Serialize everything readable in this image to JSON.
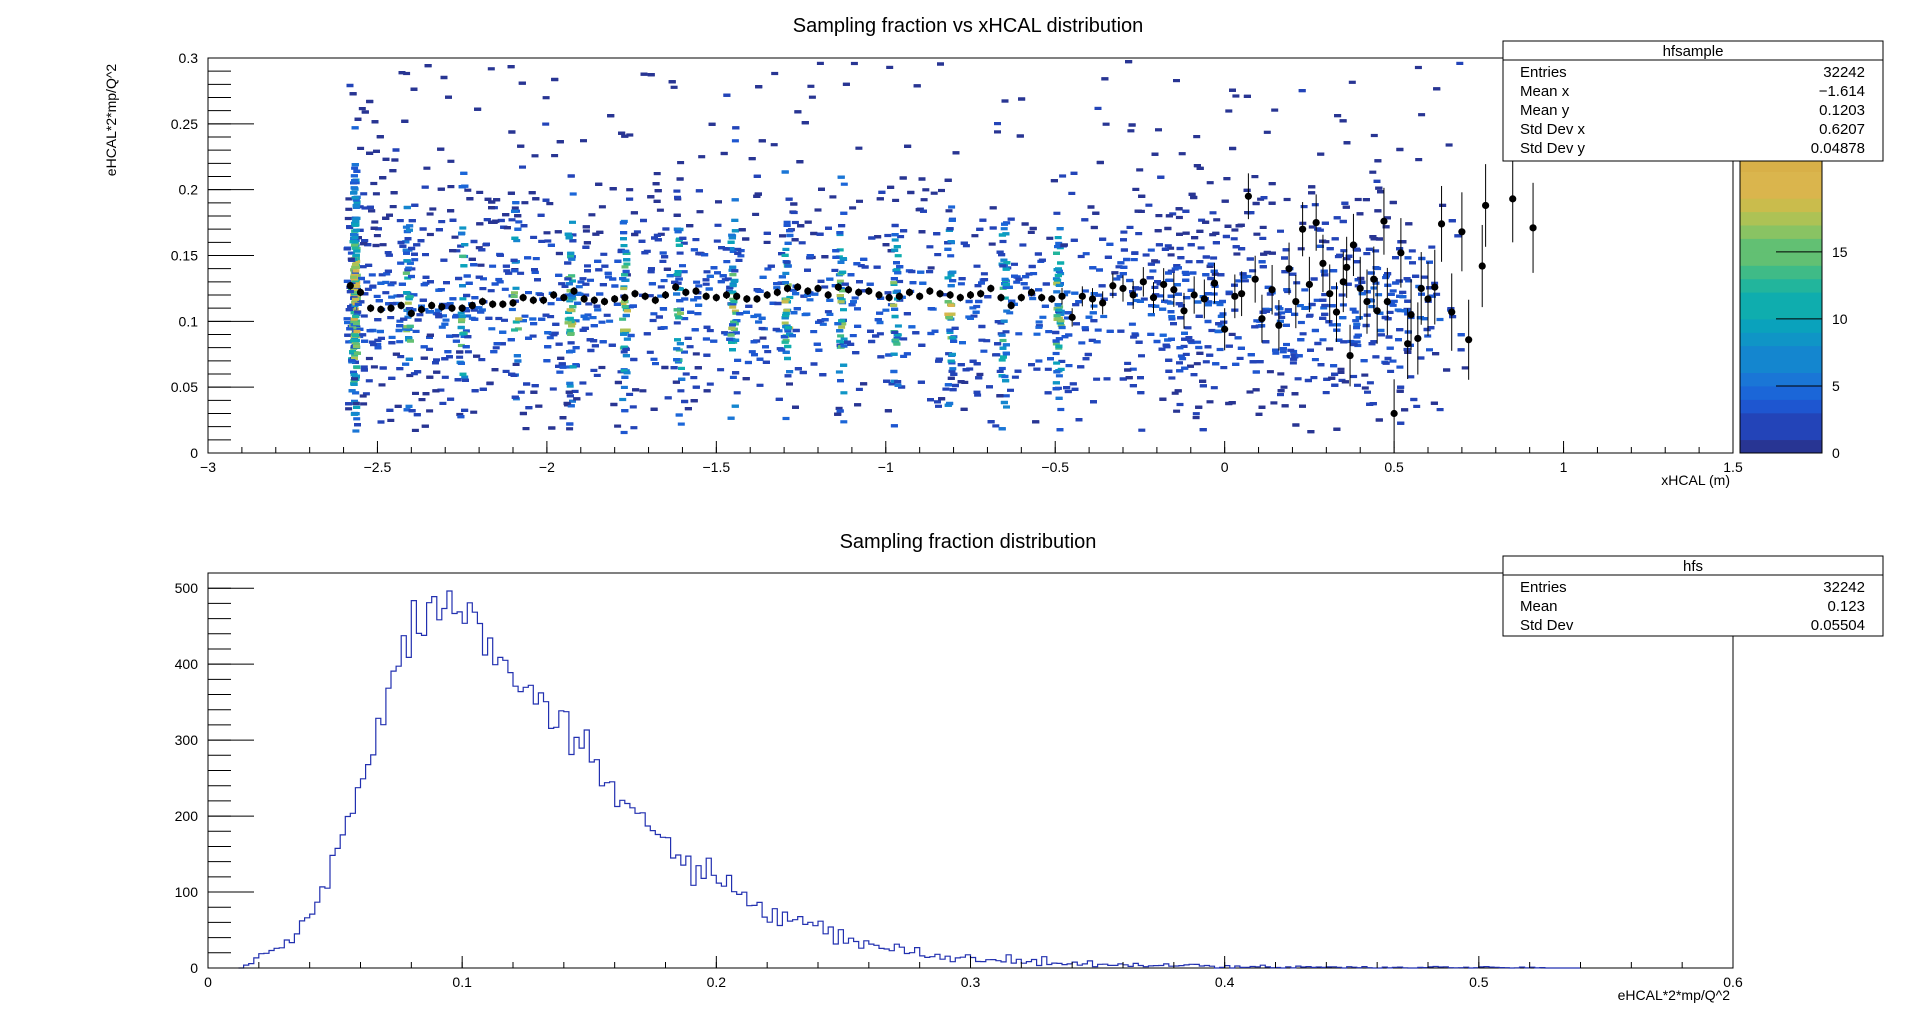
{
  "chart_data": [
    {
      "type": "heatmap",
      "name": "hfsample",
      "title": "Sampling fraction vs xHCAL distribution",
      "xlabel": "xHCAL (m)",
      "ylabel": "eHCAL*2*mp/Q^2",
      "xlim": [
        -3,
        1.5
      ],
      "ylim": [
        0,
        0.3
      ],
      "x_ticks": [
        -3,
        -2.5,
        -2,
        -1.5,
        -1,
        -0.5,
        0,
        0.5,
        1,
        1.5
      ],
      "x_tick_labels": [
        "−3",
        "−2.5",
        "−2",
        "−1.5",
        "−1",
        "−0.5",
        "0",
        "0.5",
        "1",
        "1.5"
      ],
      "y_ticks": [
        0,
        0.05,
        0.1,
        0.15,
        0.2,
        0.25,
        0.3
      ],
      "y_tick_labels": [
        "0",
        "0.05",
        "0.1",
        "0.15",
        "0.2",
        "0.25",
        "0.3"
      ],
      "z_range": [
        0,
        22
      ],
      "z_ticks": [
        0,
        5,
        10,
        15
      ],
      "z_tick_labels": [
        "0",
        "5",
        "10",
        "15"
      ],
      "stats": {
        "title": "hfsample",
        "rows": [
          {
            "label": "Entries",
            "value": "32242"
          },
          {
            "label": "Mean x",
            "value": "−1.614"
          },
          {
            "label": "Mean y",
            "value": "0.1203"
          },
          {
            "label": "Std Dev x",
            "value": "0.6207"
          },
          {
            "label": "Std Dev y",
            "value": "0.04878"
          }
        ]
      },
      "profile_means": [
        [
          -2.58,
          0.127
        ],
        [
          -2.55,
          0.122
        ],
        [
          -2.52,
          0.11
        ],
        [
          -2.49,
          0.109
        ],
        [
          -2.46,
          0.11
        ],
        [
          -2.43,
          0.112
        ],
        [
          -2.4,
          0.106
        ],
        [
          -2.37,
          0.109
        ],
        [
          -2.34,
          0.112
        ],
        [
          -2.31,
          0.111
        ],
        [
          -2.28,
          0.11
        ],
        [
          -2.25,
          0.11
        ],
        [
          -2.22,
          0.112
        ],
        [
          -2.19,
          0.115
        ],
        [
          -2.16,
          0.113
        ],
        [
          -2.13,
          0.113
        ],
        [
          -2.1,
          0.114
        ],
        [
          -2.07,
          0.118
        ],
        [
          -2.04,
          0.116
        ],
        [
          -2.01,
          0.116
        ],
        [
          -1.98,
          0.12
        ],
        [
          -1.95,
          0.118
        ],
        [
          -1.92,
          0.123
        ],
        [
          -1.89,
          0.117
        ],
        [
          -1.86,
          0.116
        ],
        [
          -1.83,
          0.115
        ],
        [
          -1.8,
          0.117
        ],
        [
          -1.77,
          0.118
        ],
        [
          -1.74,
          0.121
        ],
        [
          -1.71,
          0.119
        ],
        [
          -1.68,
          0.116
        ],
        [
          -1.65,
          0.12
        ],
        [
          -1.62,
          0.126
        ],
        [
          -1.59,
          0.122
        ],
        [
          -1.56,
          0.123
        ],
        [
          -1.53,
          0.119
        ],
        [
          -1.5,
          0.118
        ],
        [
          -1.47,
          0.12
        ],
        [
          -1.44,
          0.119
        ],
        [
          -1.41,
          0.117
        ],
        [
          -1.38,
          0.117
        ],
        [
          -1.35,
          0.12
        ],
        [
          -1.32,
          0.122
        ],
        [
          -1.29,
          0.125
        ],
        [
          -1.26,
          0.126
        ],
        [
          -1.23,
          0.123
        ],
        [
          -1.2,
          0.125
        ],
        [
          -1.17,
          0.12
        ],
        [
          -1.14,
          0.126
        ],
        [
          -1.11,
          0.124
        ],
        [
          -1.08,
          0.122
        ],
        [
          -1.05,
          0.123
        ],
        [
          -1.02,
          0.12
        ],
        [
          -0.99,
          0.118
        ],
        [
          -0.96,
          0.119
        ],
        [
          -0.93,
          0.122
        ],
        [
          -0.9,
          0.119
        ],
        [
          -0.87,
          0.123
        ],
        [
          -0.84,
          0.121
        ],
        [
          -0.81,
          0.12
        ],
        [
          -0.78,
          0.118
        ],
        [
          -0.75,
          0.12
        ],
        [
          -0.72,
          0.121
        ],
        [
          -0.69,
          0.125
        ],
        [
          -0.66,
          0.118
        ],
        [
          -0.63,
          0.112
        ],
        [
          -0.6,
          0.118
        ],
        [
          -0.57,
          0.122
        ],
        [
          -0.54,
          0.118
        ],
        [
          -0.51,
          0.117
        ],
        [
          -0.48,
          0.119
        ],
        [
          -0.45,
          0.103
        ],
        [
          -0.42,
          0.119
        ],
        [
          -0.39,
          0.117
        ],
        [
          -0.36,
          0.114
        ],
        [
          -0.33,
          0.127
        ],
        [
          -0.3,
          0.125
        ],
        [
          -0.27,
          0.12
        ],
        [
          -0.24,
          0.13
        ],
        [
          -0.21,
          0.118
        ],
        [
          -0.18,
          0.128
        ],
        [
          -0.15,
          0.124
        ],
        [
          -0.12,
          0.108
        ],
        [
          -0.09,
          0.12
        ],
        [
          -0.06,
          0.117
        ],
        [
          -0.03,
          0.129
        ],
        [
          0.0,
          0.094
        ],
        [
          0.03,
          0.119
        ],
        [
          0.05,
          0.121
        ],
        [
          0.07,
          0.195
        ],
        [
          0.09,
          0.132
        ],
        [
          0.11,
          0.102
        ],
        [
          0.14,
          0.124
        ],
        [
          0.16,
          0.097
        ],
        [
          0.19,
          0.14
        ],
        [
          0.21,
          0.115
        ],
        [
          0.23,
          0.17
        ],
        [
          0.25,
          0.128
        ],
        [
          0.27,
          0.175
        ],
        [
          0.29,
          0.144
        ],
        [
          0.31,
          0.121
        ],
        [
          0.33,
          0.107
        ],
        [
          0.35,
          0.13
        ],
        [
          0.36,
          0.141
        ],
        [
          0.37,
          0.074
        ],
        [
          0.38,
          0.158
        ],
        [
          0.4,
          0.125
        ],
        [
          0.42,
          0.115
        ],
        [
          0.44,
          0.132
        ],
        [
          0.45,
          0.108
        ],
        [
          0.47,
          0.176
        ],
        [
          0.48,
          0.115
        ],
        [
          0.5,
          0.03
        ],
        [
          0.52,
          0.152
        ],
        [
          0.54,
          0.083
        ],
        [
          0.55,
          0.105
        ],
        [
          0.57,
          0.087
        ],
        [
          0.58,
          0.125
        ],
        [
          0.6,
          0.117
        ],
        [
          0.62,
          0.126
        ],
        [
          0.64,
          0.174
        ],
        [
          0.67,
          0.107
        ],
        [
          0.7,
          0.168
        ],
        [
          0.72,
          0.086
        ],
        [
          0.76,
          0.142
        ],
        [
          0.77,
          0.188
        ],
        [
          0.85,
          0.193
        ],
        [
          0.91,
          0.171
        ]
      ]
    },
    {
      "type": "histogram",
      "name": "hfs",
      "title": "Sampling fraction distribution",
      "xlabel": "eHCAL*2*mp/Q^2",
      "ylabel": "",
      "xlim": [
        0,
        0.6
      ],
      "ylim": [
        0,
        520
      ],
      "x_ticks": [
        0,
        0.1,
        0.2,
        0.3,
        0.4,
        0.5,
        0.6
      ],
      "x_tick_labels": [
        "0",
        "0.1",
        "0.2",
        "0.3",
        "0.4",
        "0.5",
        "0.6"
      ],
      "y_ticks": [
        0,
        100,
        200,
        300,
        400,
        500
      ],
      "y_tick_labels": [
        "0",
        "100",
        "200",
        "300",
        "400",
        "500"
      ],
      "bin_width": 0.002,
      "stats": {
        "title": "hfs",
        "rows": [
          {
            "label": "Entries",
            "value": "32242"
          },
          {
            "label": "Mean",
            "value": "0.123"
          },
          {
            "label": "Std Dev",
            "value": "0.05504"
          }
        ]
      },
      "envelope_x": [
        0.014,
        0.02,
        0.03,
        0.04,
        0.05,
        0.06,
        0.07,
        0.08,
        0.09,
        0.095,
        0.1,
        0.11,
        0.12,
        0.13,
        0.14,
        0.15,
        0.16,
        0.18,
        0.2,
        0.22,
        0.25,
        0.28,
        0.3,
        0.35,
        0.4,
        0.45,
        0.5,
        0.53
      ],
      "envelope_y": [
        0,
        15,
        30,
        65,
        140,
        250,
        360,
        440,
        480,
        490,
        480,
        450,
        400,
        350,
        310,
        270,
        230,
        165,
        110,
        72,
        38,
        18,
        12,
        4,
        2,
        1,
        0.5,
        0
      ]
    }
  ]
}
